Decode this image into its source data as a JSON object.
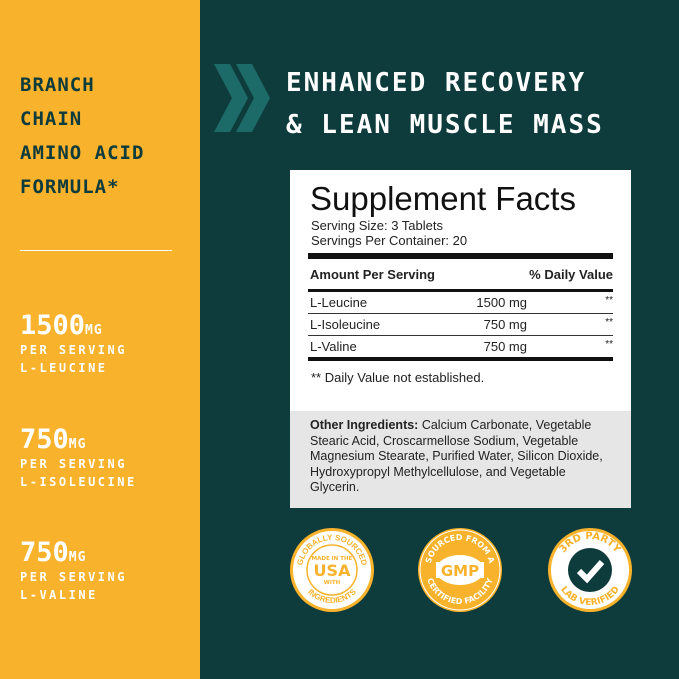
{
  "left": {
    "formula": [
      "BRANCH",
      "CHAIN",
      "AMINO ACID",
      "FORMULA*"
    ],
    "stats": [
      {
        "value": "1500",
        "unit": "MG",
        "line1": "PER SERVING",
        "line2": "L-LEUCINE"
      },
      {
        "value": "750",
        "unit": "MG",
        "line1": "PER SERVING",
        "line2": "L-ISOLEUCINE"
      },
      {
        "value": "750",
        "unit": "MG",
        "line1": "PER SERVING",
        "line2": "L-VALINE"
      }
    ]
  },
  "headline": {
    "line1": "ENHANCED RECOVERY",
    "line2": "& LEAN MUSCLE MASS"
  },
  "facts": {
    "title": "Supplement Facts",
    "serving_size": "Serving Size: 3 Tablets",
    "servings": "Servings Per Container: 20",
    "col_amount": "Amount Per Serving",
    "col_dv": "% Daily Value",
    "rows": [
      {
        "name": "L-Leucine",
        "amount": "1500 mg",
        "dv": "**"
      },
      {
        "name": "L-Isoleucine",
        "amount": "750 mg",
        "dv": "**"
      },
      {
        "name": "L-Valine",
        "amount": "750 mg",
        "dv": "**"
      }
    ],
    "footnote": "** Daily Value not established.",
    "other_label": "Other Ingredients:",
    "other_text": " Calcium Carbonate, Vegetable Stearic Acid, Croscarmellose Sodium, Vegetable Magnesium Stearate, Purified Water, Silicon Dioxide, Hydroxypropyl Methylcellulose, and Vegetable Glycerin."
  },
  "badges": [
    {
      "top": "GLOBALLY SOURCED",
      "center": "USA",
      "small1": "MADE IN THE",
      "small2": "WITH",
      "bottom": "INGREDIENTS"
    },
    {
      "top": "SOURCED FROM A",
      "center": "GMP",
      "bottom": "CERTIFIED FACILITY"
    },
    {
      "top": "3RD PARTY",
      "bottom": "LAB VERIFIED",
      "icon": "checkmark-icon"
    }
  ],
  "colors": {
    "yellow": "#f8b22b",
    "teal": "#0e3b3b",
    "chevron": "#1d6b68"
  }
}
